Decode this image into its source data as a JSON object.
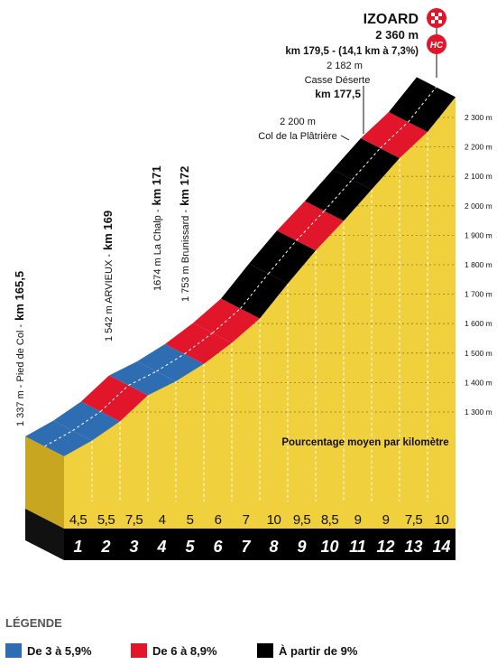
{
  "chart_data": {
    "type": "profile",
    "title": "IZOARD",
    "category": "HC",
    "summit_elevation_label": "2 360 m",
    "summit_info": "km 179,5 - (14,1 km à 7,3%)",
    "subtitle": "Pourcentage moyen par kilomètre",
    "start_elevation": 1337,
    "categories": [
      "1",
      "2",
      "3",
      "4",
      "5",
      "6",
      "7",
      "8",
      "9",
      "10",
      "11",
      "12",
      "13",
      "14"
    ],
    "values": [
      4.5,
      5.5,
      7.5,
      4,
      5,
      6,
      7,
      10,
      9.5,
      8.5,
      9,
      9,
      7.5,
      10
    ],
    "value_labels": [
      "4,5",
      "5,5",
      "7,5",
      "4",
      "5",
      "6",
      "7",
      "10",
      "9,5",
      "8,5",
      "9",
      "9",
      "7,5",
      "10"
    ],
    "colors": [
      "#2f6db3",
      "#2f6db3",
      "#e2162b",
      "#2f6db3",
      "#2f6db3",
      "#e2162b",
      "#e2162b",
      "#000000",
      "#000000",
      "#e2162b",
      "#000000",
      "#000000",
      "#e2162b",
      "#000000"
    ],
    "ylim": [
      1300,
      2300
    ],
    "yticks": [
      {
        "value": 1300,
        "label": "1 300 m"
      },
      {
        "value": 1400,
        "label": "1 400 m"
      },
      {
        "value": 1500,
        "label": "1 500 m"
      },
      {
        "value": 1600,
        "label": "1 600 m"
      },
      {
        "value": 1700,
        "label": "1 700 m"
      },
      {
        "value": 1800,
        "label": "1 800 m"
      },
      {
        "value": 1900,
        "label": "1 900 m"
      },
      {
        "value": 2000,
        "label": "2 000 m"
      },
      {
        "value": 2100,
        "label": "2 100 m"
      },
      {
        "value": 2200,
        "label": "2 200 m"
      },
      {
        "value": 2300,
        "label": "2 300 m"
      }
    ],
    "annotations": [
      {
        "text": "1 337 m - Pied de Col -",
        "bold": "km 165,5"
      },
      {
        "text": "1 542 m ARVIEUX -",
        "bold": "km 169"
      },
      {
        "text": "1674 m La Chalp -",
        "bold": "km 171"
      },
      {
        "text": "1 753 m Brunissard -",
        "bold": "km 172"
      }
    ],
    "passes": [
      {
        "elevation": "2 200 m",
        "name": "Col de la Plâtrière"
      },
      {
        "elevation": "2 182 m",
        "name": "Casse Déserte",
        "km": "km 177,5"
      }
    ],
    "legend": {
      "title": "LÉGENDE",
      "items": [
        {
          "name": "De 3 à 5,9%",
          "color": "#2f6db3"
        },
        {
          "name": "De 6 à 8,9%",
          "color": "#e2162b"
        },
        {
          "name": "À partir de 9%",
          "color": "#000000"
        }
      ]
    }
  }
}
